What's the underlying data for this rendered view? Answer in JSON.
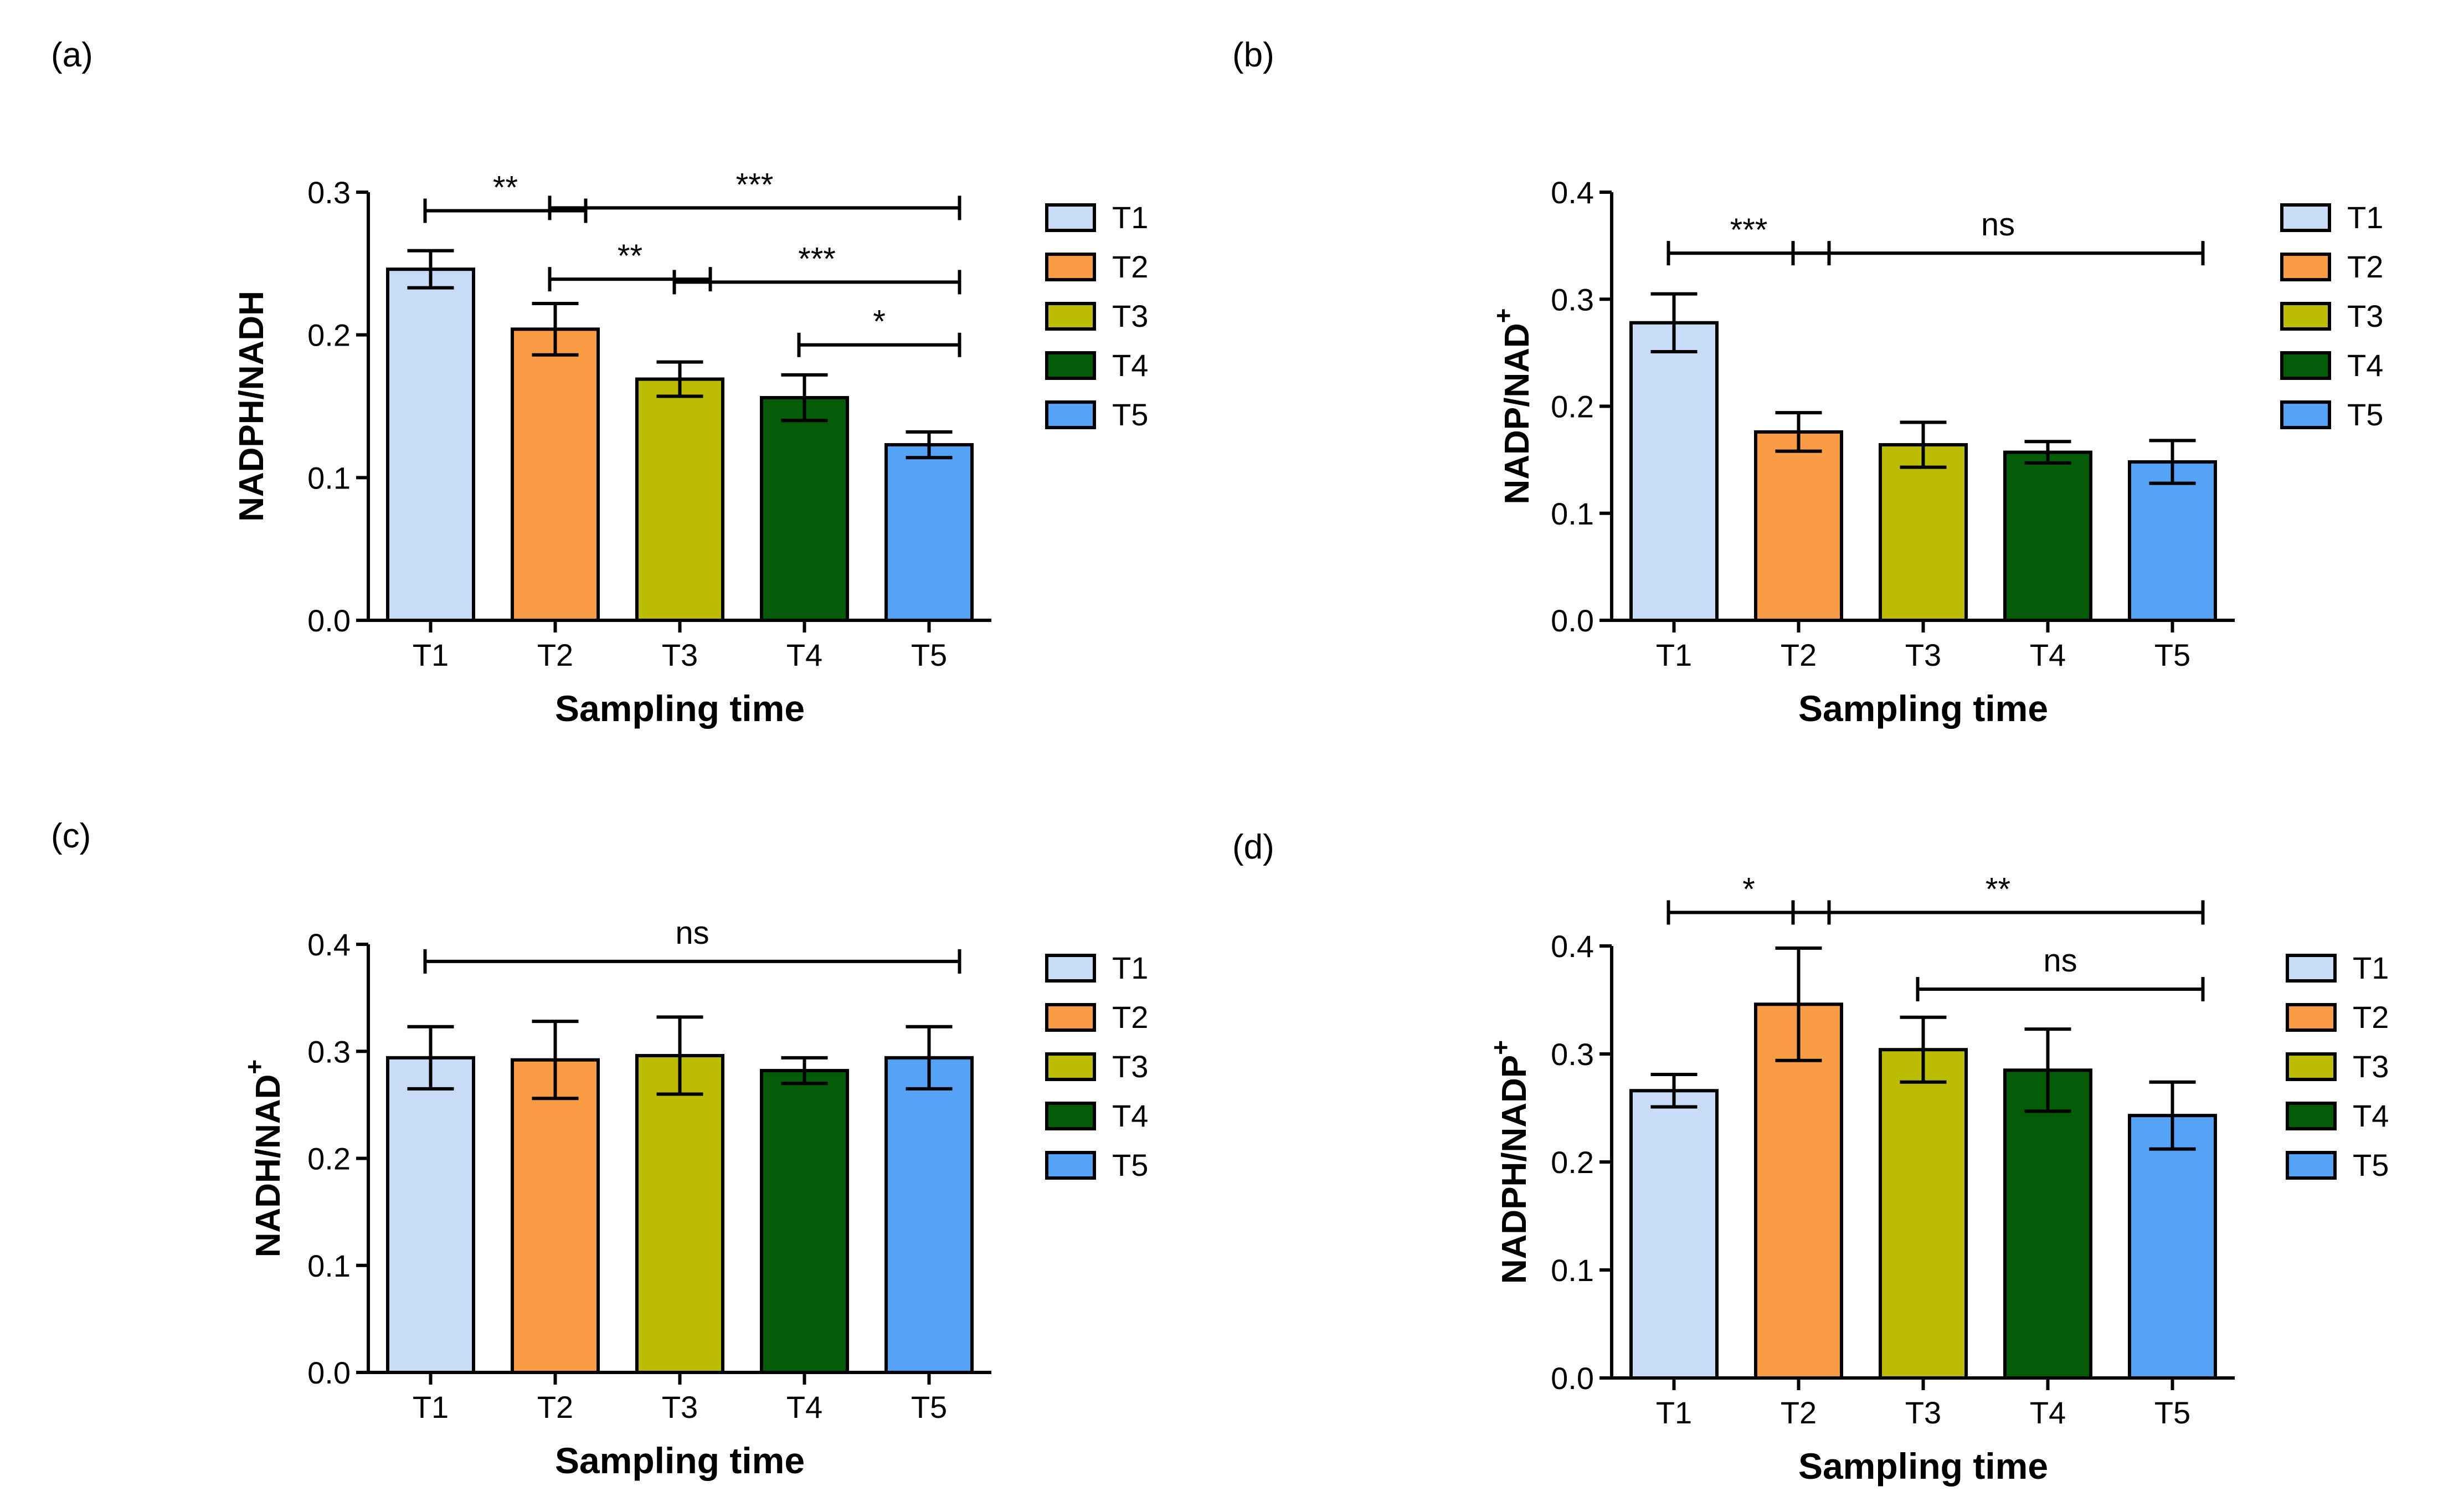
{
  "figure": {
    "colors": {
      "T1": "#c8dcf5",
      "T2": "#f89d45",
      "T3": "#bcbc00",
      "T4": "#035b06",
      "T5": "#55a2f6",
      "axis": "#000000"
    }
  },
  "chart_data": [
    {
      "panel": "(a)",
      "type": "bar",
      "categories": [
        "T1",
        "T2",
        "T3",
        "T4",
        "T5"
      ],
      "values": [
        0.246,
        0.204,
        0.169,
        0.156,
        0.123
      ],
      "errors": [
        0.013,
        0.018,
        0.012,
        0.016,
        0.009
      ],
      "xlabel": "Sampling time",
      "ylabel": "NADPH/NADH",
      "ylabel_sup": "",
      "ylim": [
        0,
        0.3
      ],
      "yticks": [
        0.0,
        0.1,
        0.2,
        0.3
      ],
      "ytick_labels": [
        "0.0",
        "0.1",
        "0.2",
        "0.3"
      ],
      "legend": [
        "T1",
        "T2",
        "T3",
        "T4",
        "T5"
      ],
      "legend_position": "right",
      "significance": [
        {
          "from": "T1",
          "to": "T2",
          "label": "**",
          "y": 0.287
        },
        {
          "from": "T2",
          "to": "T5",
          "label": "***",
          "y": 0.289
        },
        {
          "from": "T2",
          "to": "T3",
          "label": "**",
          "y": 0.239
        },
        {
          "from": "T3",
          "to": "T5",
          "label": "***",
          "y": 0.237
        },
        {
          "from": "T4",
          "to": "T5",
          "label": "*",
          "y": 0.193
        }
      ]
    },
    {
      "panel": "(b)",
      "type": "bar",
      "categories": [
        "T1",
        "T2",
        "T3",
        "T4",
        "T5"
      ],
      "values": [
        0.278,
        0.176,
        0.164,
        0.157,
        0.148
      ],
      "errors": [
        0.027,
        0.018,
        0.021,
        0.01,
        0.02
      ],
      "xlabel": "Sampling time",
      "ylabel": "NADP/NAD",
      "ylabel_sup": "+",
      "ylim": [
        0,
        0.4
      ],
      "yticks": [
        0.0,
        0.1,
        0.2,
        0.3,
        0.4
      ],
      "ytick_labels": [
        "0.0",
        "0.1",
        "0.2",
        "0.3",
        "0.4"
      ],
      "legend": [
        "T1",
        "T2",
        "T3",
        "T4",
        "T5"
      ],
      "legend_position": "right",
      "significance": [
        {
          "from": "T1",
          "to": "T2",
          "label": "***",
          "y": 0.343
        },
        {
          "from": "T2",
          "to": "T5",
          "label": "ns",
          "y": 0.343
        }
      ]
    },
    {
      "panel": "(c)",
      "type": "bar",
      "categories": [
        "T1",
        "T2",
        "T3",
        "T4",
        "T5"
      ],
      "values": [
        0.294,
        0.292,
        0.296,
        0.282,
        0.294
      ],
      "errors": [
        0.029,
        0.036,
        0.036,
        0.012,
        0.029
      ],
      "xlabel": "Sampling time",
      "ylabel": "NADH/NAD",
      "ylabel_sup": "+",
      "ylim": [
        0,
        0.4
      ],
      "yticks": [
        0.0,
        0.1,
        0.2,
        0.3,
        0.4
      ],
      "ytick_labels": [
        "0.0",
        "0.1",
        "0.2",
        "0.3",
        "0.4"
      ],
      "legend": [
        "T1",
        "T2",
        "T3",
        "T4",
        "T5"
      ],
      "legend_position": "right",
      "significance": [
        {
          "from": "T1",
          "to": "T5",
          "label": "ns",
          "y": 0.384
        }
      ]
    },
    {
      "panel": "(d)",
      "type": "bar",
      "categories": [
        "T1",
        "T2",
        "T3",
        "T4",
        "T5"
      ],
      "values": [
        0.266,
        0.346,
        0.304,
        0.285,
        0.243
      ],
      "errors": [
        0.015,
        0.052,
        0.03,
        0.038,
        0.031
      ],
      "xlabel": "Sampling time",
      "ylabel": "NADPH/NADP",
      "ylabel_sup": "+",
      "ylim": [
        0,
        0.4
      ],
      "yticks": [
        0.0,
        0.1,
        0.2,
        0.3,
        0.4
      ],
      "ytick_labels": [
        "0.0",
        "0.1",
        "0.2",
        "0.3",
        "0.4"
      ],
      "legend": [
        "T1",
        "T2",
        "T3",
        "T4",
        "T5"
      ],
      "legend_position": "right",
      "significance": [
        {
          "from": "T1",
          "to": "T2",
          "label": "*",
          "y": 0.431
        },
        {
          "from": "T2",
          "to": "T5",
          "label": "**",
          "y": 0.431
        },
        {
          "from": "T3",
          "to": "T5",
          "label": "ns",
          "y": 0.36
        }
      ]
    }
  ]
}
